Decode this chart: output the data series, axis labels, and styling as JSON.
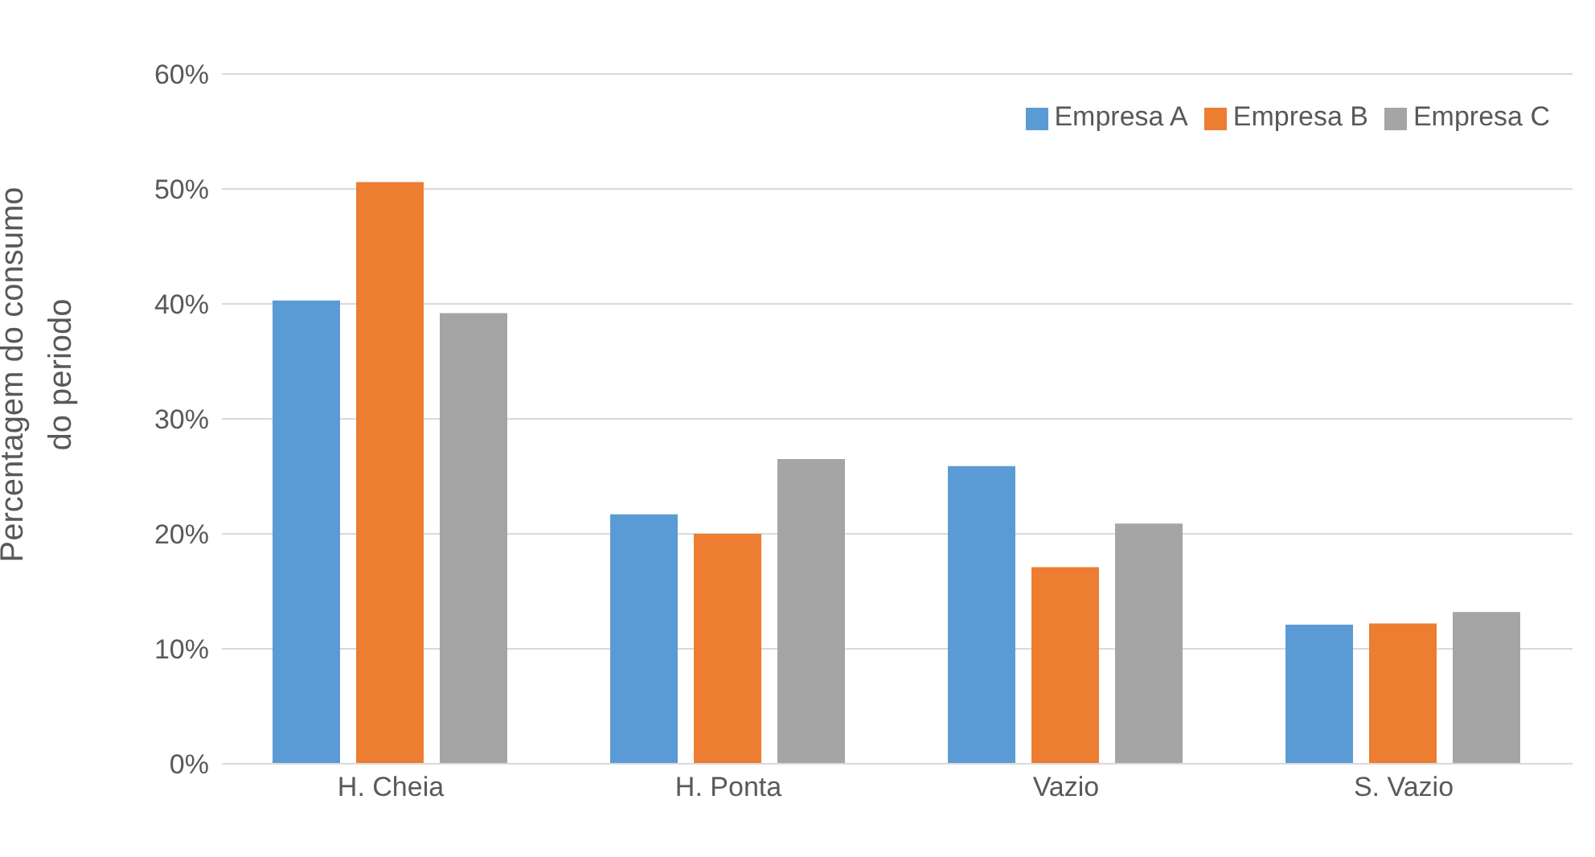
{
  "chart_data": {
    "type": "bar",
    "ylabel": "Percentagem do consumo do periodo",
    "categories": [
      "H. Cheia",
      "H. Ponta",
      "Vazio",
      "S. Vazio"
    ],
    "series": [
      {
        "name": "Empresa A",
        "color": "#5b9bd5",
        "values": [
          40.3,
          21.7,
          25.9,
          12.1
        ]
      },
      {
        "name": "Empresa B",
        "color": "#ed7d31",
        "values": [
          50.6,
          20.0,
          17.1,
          12.2
        ]
      },
      {
        "name": "Empresa C",
        "color": "#a5a5a5",
        "values": [
          39.2,
          26.5,
          20.9,
          13.2
        ]
      }
    ],
    "ylim": [
      0,
      60
    ],
    "yticks": [
      {
        "value": 0,
        "label": "0%"
      },
      {
        "value": 10,
        "label": "10%"
      },
      {
        "value": 20,
        "label": "20%"
      },
      {
        "value": 30,
        "label": "30%"
      },
      {
        "value": 40,
        "label": "40%"
      },
      {
        "value": 50,
        "label": "50%"
      },
      {
        "value": 60,
        "label": "60%"
      }
    ],
    "grid": "y",
    "legend": "top right"
  }
}
